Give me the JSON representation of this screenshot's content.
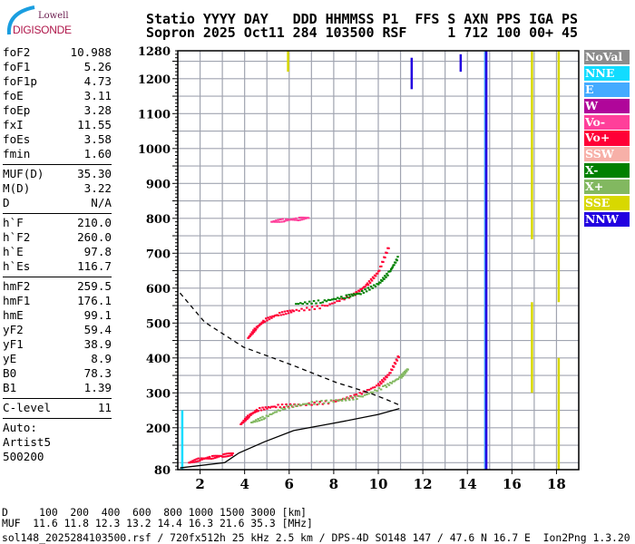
{
  "logo": {
    "top": "Lowell",
    "bottom": "DIGISONDE"
  },
  "header": {
    "line1": "Statio YYYY DAY   DDD HHMMSS P1  FFS S AXN PPS IGA PS",
    "line2": "Sopron 2025 Oct11 284 103500 RSF     1 712 100 00+ 45"
  },
  "params": {
    "group1": [
      {
        "k": "foF2",
        "v": "10.988"
      },
      {
        "k": "foF1",
        "v": "5.26"
      },
      {
        "k": "foF1p",
        "v": "4.73"
      },
      {
        "k": "foE",
        "v": "3.11"
      },
      {
        "k": "foEp",
        "v": "3.28"
      },
      {
        "k": "fxI",
        "v": "11.55"
      },
      {
        "k": "foEs",
        "v": "3.58"
      },
      {
        "k": "fmin",
        "v": "1.60"
      }
    ],
    "group2": [
      {
        "k": "MUF(D)",
        "v": "35.30"
      },
      {
        "k": "M(D)",
        "v": "3.22"
      },
      {
        "k": "D",
        "v": "N/A"
      }
    ],
    "group3": [
      {
        "k": "h`F",
        "v": "210.0"
      },
      {
        "k": "h`F2",
        "v": "260.0"
      },
      {
        "k": "h`E",
        "v": "97.8"
      },
      {
        "k": "h`Es",
        "v": "116.7"
      }
    ],
    "group4": [
      {
        "k": "hmF2",
        "v": "259.5"
      },
      {
        "k": "hmF1",
        "v": "176.1"
      },
      {
        "k": "hmE",
        "v": "99.1"
      },
      {
        "k": "yF2",
        "v": "59.4"
      },
      {
        "k": "yF1",
        "v": "38.9"
      },
      {
        "k": "yE",
        "v": "8.9"
      },
      {
        "k": "B0",
        "v": "78.3"
      },
      {
        "k": "B1",
        "v": "1.39"
      }
    ],
    "group5": [
      {
        "k": "C-level",
        "v": "11"
      }
    ],
    "auto": [
      "Auto:",
      "Artist5",
      "500200"
    ]
  },
  "legend": [
    {
      "label": "NoVal",
      "color": "#8c8c8c"
    },
    {
      "label": "NNE",
      "color": "#12dcff"
    },
    {
      "label": "E",
      "color": "#44aaff"
    },
    {
      "label": "W",
      "color": "#b0069a"
    },
    {
      "label": "Vo-",
      "color": "#ff3f9a"
    },
    {
      "label": "Vo+",
      "color": "#ff0036"
    },
    {
      "label": "SSW",
      "color": "#f7b0a8"
    },
    {
      "label": "X-",
      "color": "#008000"
    },
    {
      "label": "X+",
      "color": "#82b860"
    },
    {
      "label": "SSE",
      "color": "#d8d800"
    },
    {
      "label": "NNW",
      "color": "#2200e0"
    }
  ],
  "bottom": {
    "d_line": "D     100  200  400  600  800 1000 1500 3000 [km]",
    "muf_line": "MUF  11.6 11.8 12.3 13.2 14.4 16.3 21.6 35.3 [MHz]",
    "file_line": "sol148_2025284103500.rsf / 720fx512h 25 kHz 2.5 km / DPS-4D SO148 147 / 47.6 N 16.7 E  Ion2Png 1.3.20"
  },
  "chart_data": {
    "type": "scatter",
    "title": "",
    "xlabel": "",
    "ylabel": "",
    "xlim": [
      1,
      19
    ],
    "ylim": [
      80,
      1280
    ],
    "xticks": [
      "2",
      "4",
      "6",
      "8",
      "10",
      "12",
      "14",
      "16",
      "18"
    ],
    "yticks": [
      "80",
      "200",
      "300",
      "400",
      "500",
      "600",
      "700",
      "800",
      "900",
      "1000",
      "1100",
      "1200",
      "1280"
    ],
    "grid": true,
    "legend_placement": "right",
    "series": [
      {
        "name": "Vo+",
        "color": "#ff0036",
        "points": [
          [
            3.82,
            210
          ],
          [
            4.2,
            235
          ],
          [
            4.6,
            252
          ],
          [
            5.4,
            262
          ],
          [
            6.5,
            265
          ],
          [
            8.0,
            275
          ],
          [
            9.0,
            292
          ],
          [
            10.0,
            322
          ],
          [
            10.5,
            355
          ],
          [
            10.95,
            410
          ]
        ]
      },
      {
        "name": "X+",
        "color": "#82b860",
        "points": [
          [
            4.3,
            215
          ],
          [
            4.9,
            230
          ],
          [
            5.8,
            258
          ],
          [
            6.9,
            270
          ],
          [
            8.2,
            278
          ],
          [
            9.2,
            288
          ],
          [
            10.3,
            318
          ],
          [
            11.0,
            345
          ],
          [
            11.35,
            370
          ]
        ]
      },
      {
        "name": "Vo+",
        "color": "#ff0036",
        "points": [
          [
            4.15,
            457
          ],
          [
            4.5,
            485
          ],
          [
            4.9,
            508
          ],
          [
            5.5,
            525
          ],
          [
            6.2,
            535
          ],
          [
            7.6,
            548
          ],
          [
            8.9,
            581
          ],
          [
            9.5,
            610
          ],
          [
            10.0,
            646
          ],
          [
            10.5,
            724
          ]
        ]
      },
      {
        "name": "X-",
        "color": "#008000",
        "points": [
          [
            6.3,
            555
          ],
          [
            7.5,
            562
          ],
          [
            8.5,
            575
          ],
          [
            9.2,
            586
          ],
          [
            10.0,
            612
          ],
          [
            10.5,
            646
          ],
          [
            10.9,
            690
          ]
        ]
      },
      {
        "name": "Vo-",
        "color": "#ff3f9a",
        "points": [
          [
            5.2,
            790
          ],
          [
            5.8,
            795
          ],
          [
            6.4,
            798
          ],
          [
            6.9,
            802
          ]
        ]
      },
      {
        "name": "Vo+",
        "color": "#ff0036",
        "points": [
          [
            1.5,
            100
          ],
          [
            2.0,
            110
          ],
          [
            2.5,
            115
          ],
          [
            3.0,
            120
          ],
          [
            3.5,
            125
          ]
        ]
      }
    ],
    "profile": {
      "color": "#000000",
      "points": [
        [
          1.1,
          85
        ],
        [
          3.1,
          100
        ],
        [
          3.75,
          128
        ],
        [
          4.9,
          160
        ],
        [
          6.2,
          192
        ],
        [
          8.0,
          213
        ],
        [
          10.0,
          238
        ],
        [
          10.95,
          255
        ]
      ]
    },
    "topside_extrapolation": {
      "color": "#000000",
      "style": "dashed",
      "points": [
        [
          1.1,
          586
        ],
        [
          2.2,
          503
        ],
        [
          3.95,
          431
        ],
        [
          6.2,
          378
        ],
        [
          8.1,
          330
        ],
        [
          9.6,
          300
        ],
        [
          10.4,
          280
        ],
        [
          10.95,
          265
        ]
      ]
    },
    "interference_lines": [
      {
        "f": 14.8,
        "color": "#44aaff",
        "h": [
          80,
          1280
        ]
      },
      {
        "f": 14.85,
        "color": "#2200e0",
        "h": [
          80,
          1280
        ]
      },
      {
        "f": 16.9,
        "color": "#d8d800",
        "h": [
          740,
          1280
        ]
      },
      {
        "f": 16.9,
        "color": "#d8d800",
        "h": [
          300,
          560
        ]
      },
      {
        "f": 18.1,
        "color": "#d8d800",
        "h": [
          560,
          1280
        ]
      },
      {
        "f": 18.1,
        "color": "#d8d800",
        "h": [
          80,
          400
        ]
      },
      {
        "f": 11.5,
        "color": "#2200e0",
        "h": [
          1170,
          1260
        ]
      },
      {
        "f": 13.7,
        "color": "#2200e0",
        "h": [
          1220,
          1270
        ]
      },
      {
        "f": 5.95,
        "color": "#d8d800",
        "h": [
          1220,
          1280
        ]
      },
      {
        "f": 1.2,
        "color": "#12dcff",
        "h": [
          80,
          250
        ]
      }
    ]
  }
}
